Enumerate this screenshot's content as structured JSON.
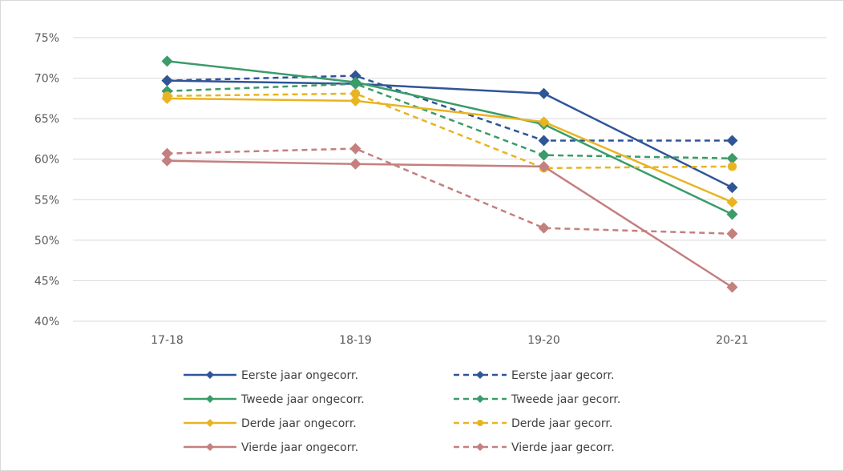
{
  "chart_data": {
    "type": "line",
    "categories": [
      "17-18",
      "18-19",
      "19-20",
      "20-21"
    ],
    "ylim": [
      0.4,
      0.75
    ],
    "yticks": [
      {
        "value": 0.75,
        "label": "75%"
      },
      {
        "value": 0.7,
        "label": "70%"
      },
      {
        "value": 0.65,
        "label": "65%"
      },
      {
        "value": 0.6,
        "label": "60%"
      },
      {
        "value": 0.55,
        "label": "55%"
      },
      {
        "value": 0.5,
        "label": "50%"
      },
      {
        "value": 0.45,
        "label": "45%"
      },
      {
        "value": 0.4,
        "label": "40%"
      }
    ],
    "grid": true,
    "legend": "bottom",
    "series": [
      {
        "name": "Eerste jaar ongecorr.",
        "color": "#2f5597",
        "dash": false,
        "marker": "diamond",
        "values": [
          0.697,
          0.693,
          0.681,
          0.565
        ]
      },
      {
        "name": "Eerste jaar gecorr.",
        "color": "#2f5597",
        "dash": true,
        "marker": "diamond",
        "values": [
          0.697,
          0.703,
          0.623,
          0.623
        ]
      },
      {
        "name": "Tweede jaar ongecorr.",
        "color": "#3a9c69",
        "dash": false,
        "marker": "diamond",
        "values": [
          0.721,
          0.695,
          0.643,
          0.532
        ]
      },
      {
        "name": "Tweede jaar gecorr.",
        "color": "#3a9c69",
        "dash": true,
        "marker": "diamond",
        "values": [
          0.684,
          0.693,
          0.605,
          0.601
        ]
      },
      {
        "name": "Derde jaar ongecorr.",
        "color": "#e8b422",
        "dash": false,
        "marker": "diamond",
        "values": [
          0.675,
          0.672,
          0.646,
          0.547
        ]
      },
      {
        "name": "Derde jaar gecorr.",
        "color": "#e8b422",
        "dash": true,
        "marker": "circle",
        "values": [
          0.678,
          0.681,
          0.589,
          0.591
        ]
      },
      {
        "name": "Vierde jaar ongecorr.",
        "color": "#c47f7f",
        "dash": false,
        "marker": "diamond",
        "values": [
          0.598,
          0.594,
          0.591,
          0.442
        ]
      },
      {
        "name": "Vierde jaar gecorr.",
        "color": "#c47f7f",
        "dash": true,
        "marker": "diamond",
        "values": [
          0.607,
          0.613,
          0.515,
          0.508
        ]
      }
    ]
  }
}
